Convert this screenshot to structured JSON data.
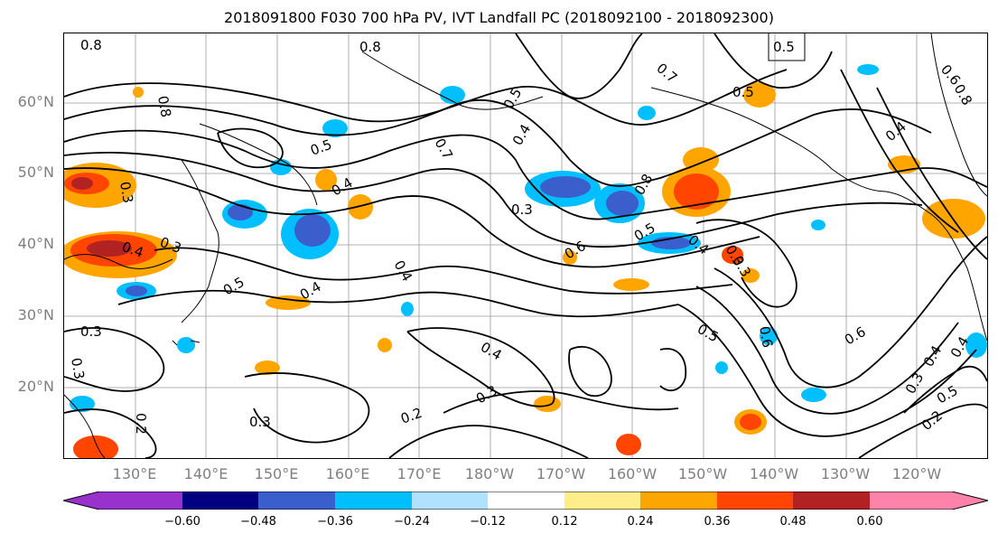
{
  "title": "2018091800 F030 700 hPa PV, IVT Landfall PC (2018092100 - 2018092300)",
  "lat_labels": [
    "60°N",
    "50°N",
    "40°N",
    "30°N",
    "20°N"
  ],
  "lon_labels": [
    "130°E",
    "140°E",
    "150°E",
    "160°E",
    "170°E",
    "180°W",
    "170°W",
    "160°W",
    "150°W",
    "140°W",
    "130°W",
    "120°W"
  ],
  "colorbar": {
    "ticks": [
      "−0.60",
      "−0.48",
      "−0.36",
      "−0.24",
      "−0.12",
      "0.12",
      "0.24",
      "0.36",
      "0.48",
      "0.60"
    ],
    "colors": [
      "#9932CC",
      "#000080",
      "#3A5FCD",
      "#00BFFF",
      "#B0E2FF",
      "#FFFFFF",
      "#FFEC8B",
      "#FFA500",
      "#FF4500",
      "#B22222",
      "#FF82AB"
    ]
  },
  "contour_labels": [
    "0.8",
    "0.8",
    "0.5",
    "0.7",
    "0.5",
    "0.4",
    "0.3",
    "0.8",
    "0.5",
    "0.7",
    "0.5",
    "0.6",
    "0.8",
    "0.4",
    "0.3",
    "0.4",
    "0.3",
    "0.3",
    "0.4",
    "0.4",
    "0.5",
    "0.4",
    "0.5",
    "0.8",
    "0.6",
    "0.4",
    "0.3",
    "0.5",
    "0.6",
    "0.4",
    "0.6",
    "0.3",
    "0.4",
    "0.3",
    "0.2",
    "0.3",
    "0.2",
    "0.3",
    "0.4",
    "0.5",
    "0.2",
    "0.3"
  ],
  "map_features": [
    "coastlines",
    "lat-lon gridlines",
    "PV contours",
    "IVT principal component shading"
  ]
}
